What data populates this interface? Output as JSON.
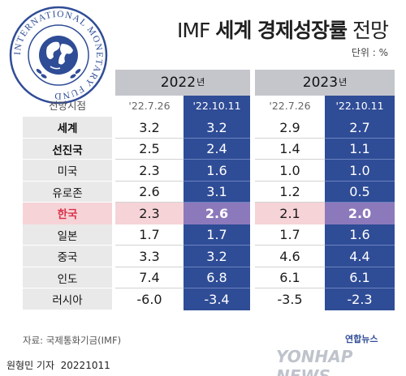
{
  "header": {
    "title_prefix": "IMF",
    "title_bold": "세계 경제성장률",
    "title_suffix": "전망",
    "unit": "단위 : %"
  },
  "logo": {
    "ring_text": "INTERNATIONAL MONETARY FUND",
    "color": "#2f4c96"
  },
  "table": {
    "row_header_label": "전망시점",
    "years": [
      {
        "year": "2022",
        "suffix": "년",
        "dates": [
          "'22.7.26",
          "'22.10.11"
        ]
      },
      {
        "year": "2023",
        "suffix": "년",
        "dates": [
          "'22.7.26",
          "'22.10.11"
        ]
      }
    ]
  },
  "chart_data": {
    "type": "table",
    "title": "IMF 세계 경제성장률 전망",
    "unit": "%",
    "columns": [
      {
        "year": "2022",
        "date": "'22.7.26"
      },
      {
        "year": "2022",
        "date": "'22.10.11"
      },
      {
        "year": "2023",
        "date": "'22.7.26"
      },
      {
        "year": "2023",
        "date": "'22.10.11"
      }
    ],
    "rows": [
      {
        "name": "세계",
        "values": [
          "3.2",
          "3.2",
          "2.9",
          "2.7"
        ]
      },
      {
        "name": "선진국",
        "values": [
          "2.5",
          "2.4",
          "1.4",
          "1.1"
        ]
      },
      {
        "name": "미국",
        "values": [
          "2.3",
          "1.6",
          "1.0",
          "1.0"
        ]
      },
      {
        "name": "유로존",
        "values": [
          "2.6",
          "3.1",
          "1.2",
          "0.5"
        ]
      },
      {
        "name": "한국",
        "values": [
          "2.3",
          "2.6",
          "2.1",
          "2.0"
        ],
        "highlight": true
      },
      {
        "name": "일본",
        "values": [
          "1.7",
          "1.7",
          "1.7",
          "1.6"
        ]
      },
      {
        "name": "중국",
        "values": [
          "3.3",
          "3.2",
          "4.6",
          "4.4"
        ]
      },
      {
        "name": "인도",
        "values": [
          "7.4",
          "6.8",
          "6.1",
          "6.1"
        ]
      },
      {
        "name": "러시아",
        "values": [
          "-6.0",
          "-3.4",
          "-3.5",
          "-2.3"
        ]
      }
    ]
  },
  "colors": {
    "blue_column": "#2f4c96",
    "highlight_row": "#f6d3d7",
    "highlight_name": "#d9334a",
    "highlight_blue": "#8c79bb",
    "gray_row": "#e9e9e9",
    "year_header": "#c4c6cc"
  },
  "footer": {
    "source": "자료: 국제통화기금(IMF)",
    "reporter": "원형민 기자",
    "date": "20221011",
    "watermark_small": "연합뉴스",
    "watermark_big": "YONHAP NEWS"
  }
}
